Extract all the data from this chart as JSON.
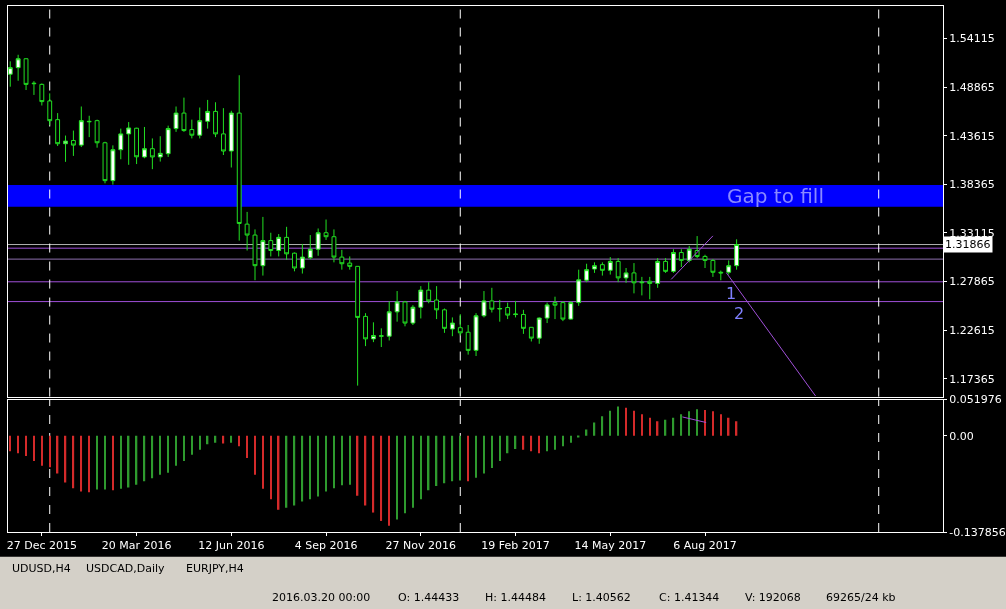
{
  "chart_data": [
    {
      "type": "candlestick",
      "color": "#22e022",
      "tick_labels": "y",
      "grid": false,
      "x": [
        "2015-11-29",
        "2015-12-06",
        "2015-12-13",
        "2015-12-20",
        "2015-12-27",
        "2016-01-03",
        "2016-01-10",
        "2016-01-17",
        "2016-01-24",
        "2016-01-31",
        "2016-02-07",
        "2016-02-14",
        "2016-02-21",
        "2016-02-28",
        "2016-03-06",
        "2016-03-13",
        "2016-03-20",
        "2016-03-27",
        "2016-04-03",
        "2016-04-10",
        "2016-04-17",
        "2016-04-24",
        "2016-05-01",
        "2016-05-08",
        "2016-05-15",
        "2016-05-22",
        "2016-05-29",
        "2016-06-05",
        "2016-06-12",
        "2016-06-19",
        "2016-06-26",
        "2016-07-03",
        "2016-07-10",
        "2016-07-17",
        "2016-07-24",
        "2016-07-31",
        "2016-08-07",
        "2016-08-14",
        "2016-08-21",
        "2016-08-28",
        "2016-09-04",
        "2016-09-11",
        "2016-09-18",
        "2016-09-25",
        "2016-10-02",
        "2016-10-09",
        "2016-10-16",
        "2016-10-23",
        "2016-10-30",
        "2016-11-06",
        "2016-11-13",
        "2016-11-20",
        "2016-11-27",
        "2016-12-04",
        "2016-12-11",
        "2016-12-18",
        "2016-12-25",
        "2017-01-01",
        "2017-01-08",
        "2017-01-15",
        "2017-01-22",
        "2017-01-29",
        "2017-02-05",
        "2017-02-12",
        "2017-02-19",
        "2017-02-26",
        "2017-03-05",
        "2017-03-12",
        "2017-03-19",
        "2017-03-26",
        "2017-04-02",
        "2017-04-09",
        "2017-04-16",
        "2017-04-23",
        "2017-04-30",
        "2017-05-07",
        "2017-05-14",
        "2017-05-21",
        "2017-05-28",
        "2017-06-04",
        "2017-06-11",
        "2017-06-18",
        "2017-06-25",
        "2017-07-02",
        "2017-07-09",
        "2017-07-16",
        "2017-07-23",
        "2017-07-30",
        "2017-08-06",
        "2017-08-13",
        "2017-08-20",
        "2017-08-27",
        "2017-09-03"
      ],
      "ohlc": [
        [
          1.5027,
          1.5166,
          1.4892,
          1.5098
        ],
        [
          1.5098,
          1.5237,
          1.4956,
          1.5194
        ],
        [
          1.5194,
          1.5198,
          1.4856,
          1.4917
        ],
        [
          1.493,
          1.4952,
          1.4803,
          1.4925
        ],
        [
          1.4917,
          1.4927,
          1.4689,
          1.4731
        ],
        [
          1.4738,
          1.482,
          1.4475,
          1.4525
        ],
        [
          1.4536,
          1.4607,
          1.4251,
          1.4276
        ],
        [
          1.4276,
          1.4364,
          1.408,
          1.4304
        ],
        [
          1.4311,
          1.4418,
          1.4144,
          1.4261
        ],
        [
          1.4261,
          1.4678,
          1.424,
          1.4525
        ],
        [
          1.4518,
          1.4578,
          1.4347,
          1.4514
        ],
        [
          1.4525,
          1.4536,
          1.4233,
          1.4286
        ],
        [
          1.4286,
          1.4297,
          1.3848,
          1.3877
        ],
        [
          1.3877,
          1.4258,
          1.3834,
          1.4211
        ],
        [
          1.4211,
          1.4439,
          1.4108,
          1.4382
        ],
        [
          1.4382,
          1.451,
          1.4048,
          1.4446
        ],
        [
          1.44433,
          1.44484,
          1.40562,
          1.41344
        ],
        [
          1.4133,
          1.4457,
          1.4119,
          1.4222
        ],
        [
          1.4222,
          1.4333,
          1.4001,
          1.4133
        ],
        [
          1.4133,
          1.4357,
          1.4083,
          1.4172
        ],
        [
          1.4168,
          1.4471,
          1.4133,
          1.4439
        ],
        [
          1.4439,
          1.4678,
          1.4404,
          1.4607
        ],
        [
          1.4607,
          1.4774,
          1.4404,
          1.4418
        ],
        [
          1.4429,
          1.4536,
          1.4333,
          1.4368
        ],
        [
          1.4368,
          1.4667,
          1.4333,
          1.4525
        ],
        [
          1.4518,
          1.4749,
          1.4439,
          1.4625
        ],
        [
          1.4625,
          1.4724,
          1.4347,
          1.4382
        ],
        [
          1.4382,
          1.466,
          1.4154,
          1.4197
        ],
        [
          1.4197,
          1.4632,
          1.4019,
          1.4607
        ],
        [
          1.4607,
          1.5016,
          1.3229,
          1.3414
        ],
        [
          1.3407,
          1.3539,
          1.3122,
          1.3289
        ],
        [
          1.3289,
          1.335,
          1.2801,
          1.2958
        ],
        [
          1.2958,
          1.3485,
          1.2851,
          1.3229
        ],
        [
          1.3229,
          1.3314,
          1.3058,
          1.3122
        ],
        [
          1.3122,
          1.33,
          1.3058,
          1.3264
        ],
        [
          1.3264,
          1.3378,
          1.3022,
          1.3086
        ],
        [
          1.3093,
          1.3101,
          1.2897,
          1.2933
        ],
        [
          1.2933,
          1.3193,
          1.2873,
          1.3051
        ],
        [
          1.3044,
          1.3289,
          1.3029,
          1.3136
        ],
        [
          1.3136,
          1.336,
          1.3065,
          1.3314
        ],
        [
          1.3314,
          1.3457,
          1.3236,
          1.3271
        ],
        [
          1.3271,
          1.335,
          1.2994,
          1.3051
        ],
        [
          1.3051,
          1.3129,
          1.2915,
          1.2979
        ],
        [
          1.2986,
          1.3058,
          1.2915,
          1.2951
        ],
        [
          1.2951,
          1.2951,
          1.1662,
          1.2399
        ],
        [
          1.241,
          1.2445,
          1.2089,
          1.2167
        ],
        [
          1.2167,
          1.2346,
          1.2132,
          1.2203
        ],
        [
          1.2196,
          1.2281,
          1.2079,
          1.22
        ],
        [
          1.2196,
          1.2573,
          1.215,
          1.246
        ],
        [
          1.2459,
          1.2684,
          1.2353,
          1.2566
        ],
        [
          1.2566,
          1.2577,
          1.2303,
          1.2338
        ],
        [
          1.2338,
          1.2531,
          1.2317,
          1.2509
        ],
        [
          1.2509,
          1.2737,
          1.2388,
          1.2694
        ],
        [
          1.2694,
          1.278,
          1.2552,
          1.2577
        ],
        [
          1.2587,
          1.2737,
          1.2381,
          1.2481
        ],
        [
          1.2481,
          1.2495,
          1.2232,
          1.2281
        ],
        [
          1.2274,
          1.2399,
          1.2196,
          1.2338
        ],
        [
          1.2288,
          1.2434,
          1.2203,
          1.2232
        ],
        [
          1.2239,
          1.2317,
          1.1997,
          1.2043
        ],
        [
          1.2043,
          1.2445,
          1.1982,
          1.2417
        ],
        [
          1.2417,
          1.2684,
          1.2399,
          1.2577
        ],
        [
          1.2577,
          1.2719,
          1.2452,
          1.2488
        ],
        [
          1.249,
          1.2588,
          1.2353,
          1.2495
        ],
        [
          1.2506,
          1.2559,
          1.2381,
          1.2424
        ],
        [
          1.243,
          1.2577,
          1.2399,
          1.2435
        ],
        [
          1.2431,
          1.2481,
          1.2221,
          1.2281
        ],
        [
          1.2292,
          1.2292,
          1.2139,
          1.2175
        ],
        [
          1.2175,
          1.2399,
          1.2114,
          1.2392
        ],
        [
          1.2392,
          1.2559,
          1.2338,
          1.2534
        ],
        [
          1.2559,
          1.2623,
          1.2381,
          1.2531
        ],
        [
          1.2559,
          1.2573,
          1.2359,
          1.2381
        ],
        [
          1.2381,
          1.2573,
          1.2374,
          1.2559
        ],
        [
          1.2559,
          1.2915,
          1.2524,
          1.2805
        ],
        [
          1.2801,
          1.2979,
          1.278,
          1.2915
        ],
        [
          1.2922,
          1.2994,
          1.288,
          1.2958
        ],
        [
          1.2969,
          1.2994,
          1.2851,
          1.2908
        ],
        [
          1.2908,
          1.3051,
          1.2862,
          1.3004
        ],
        [
          1.3004,
          1.304,
          1.278,
          1.2826
        ],
        [
          1.2826,
          1.2933,
          1.2773,
          1.288
        ],
        [
          1.288,
          1.2986,
          1.2659,
          1.2773
        ],
        [
          1.2773,
          1.2837,
          1.2637,
          1.278
        ],
        [
          1.279,
          1.2837,
          1.2595,
          1.2766
        ],
        [
          1.2766,
          1.304,
          1.2719,
          1.3004
        ],
        [
          1.3004,
          1.304,
          1.288,
          1.2897
        ],
        [
          1.2897,
          1.3136,
          1.288,
          1.31
        ],
        [
          1.31,
          1.3136,
          1.2944,
          1.3015
        ],
        [
          1.3015,
          1.3172,
          1.2994,
          1.3136
        ],
        [
          1.3122,
          1.3278,
          1.304,
          1.3058
        ],
        [
          1.3058,
          1.3076,
          1.2933,
          1.3015
        ],
        [
          1.3015,
          1.3029,
          1.2837,
          1.2887
        ],
        [
          1.2887,
          1.2905,
          1.28,
          1.288
        ],
        [
          1.2887,
          1.3015,
          1.2862,
          1.2958
        ],
        [
          1.2958,
          1.3243,
          1.2915,
          1.31866
        ]
      ],
      "series": [
        {
          "type": "line",
          "color": "#a050d8",
          "x": [
            "2017-07-07",
            "2017-08-13"
          ],
          "values": [
            1.281,
            1.328
          ]
        },
        {
          "type": "line",
          "color": "#a050d8",
          "x": [
            "2017-08-25",
            "2017-11-12"
          ],
          "values": [
            1.288,
            1.155
          ]
        }
      ],
      "xlim": [
        "2015-11-27",
        "2018-03-05"
      ],
      "ylim": [
        1.1544,
        1.5764
      ],
      "yticks": [
        1.54115,
        1.48865,
        1.43615,
        1.38365,
        1.33115,
        1.27865,
        1.22615,
        1.17365
      ],
      "bands": [
        {
          "axis": "y",
          "from": 1.3595,
          "to": 1.383,
          "label": "Gap to fill",
          "color": "#0000ff"
        }
      ],
      "ref_lines": [
        {
          "axis": "y",
          "value": 1.31866,
          "label": "1.31866",
          "color": "#b0b0b0"
        },
        {
          "axis": "y",
          "value": 1.3147,
          "color": "#a050d8"
        },
        {
          "axis": "y",
          "value": 1.3029,
          "color": "#8e70b0"
        },
        {
          "axis": "y",
          "value": 1.2784,
          "color": "#a050d8"
        },
        {
          "axis": "y",
          "value": 1.257,
          "color": "#a050d8"
        },
        {
          "axis": "x",
          "value": "2016-01-03",
          "color": "#ffffff",
          "line_style": "dashed"
        },
        {
          "axis": "x",
          "value": "2017-01-01",
          "color": "#ffffff",
          "line_style": "dashed"
        },
        {
          "axis": "x",
          "value": "2018-01-07",
          "color": "#ffffff",
          "line_style": "dashed"
        }
      ],
      "annotations": [
        {
          "text": "1",
          "x": "2017-08-29",
          "y": 1.2784
        },
        {
          "text": "2",
          "x": "2017-09-05",
          "y": 1.257
        },
        "UDUSD,H4",
        "USDCAD,Daily",
        "EURJPY,H4"
      ]
    },
    {
      "type": "bar",
      "grid": false,
      "x": [
        "2015-11-29",
        "2015-12-06",
        "2015-12-13",
        "2015-12-20",
        "2015-12-27",
        "2016-01-03",
        "2016-01-10",
        "2016-01-17",
        "2016-01-24",
        "2016-01-31",
        "2016-02-07",
        "2016-02-14",
        "2016-02-21",
        "2016-02-28",
        "2016-03-06",
        "2016-03-13",
        "2016-03-20",
        "2016-03-27",
        "2016-04-03",
        "2016-04-10",
        "2016-04-17",
        "2016-04-24",
        "2016-05-01",
        "2016-05-08",
        "2016-05-15",
        "2016-05-22",
        "2016-05-29",
        "2016-06-05",
        "2016-06-12",
        "2016-06-19",
        "2016-06-26",
        "2016-07-03",
        "2016-07-10",
        "2016-07-17",
        "2016-07-24",
        "2016-07-31",
        "2016-08-07",
        "2016-08-14",
        "2016-08-21",
        "2016-08-28",
        "2016-09-04",
        "2016-09-11",
        "2016-09-18",
        "2016-09-25",
        "2016-10-02",
        "2016-10-09",
        "2016-10-16",
        "2016-10-23",
        "2016-10-30",
        "2016-11-06",
        "2016-11-13",
        "2016-11-20",
        "2016-11-27",
        "2016-12-04",
        "2016-12-11",
        "2016-12-18",
        "2016-12-25",
        "2017-01-01",
        "2017-01-08",
        "2017-01-15",
        "2017-01-22",
        "2017-01-29",
        "2017-02-05",
        "2017-02-12",
        "2017-02-19",
        "2017-02-26",
        "2017-03-05",
        "2017-03-12",
        "2017-03-19",
        "2017-03-26",
        "2017-04-02",
        "2017-04-09",
        "2017-04-16",
        "2017-04-23",
        "2017-04-30",
        "2017-05-07",
        "2017-05-14",
        "2017-05-21",
        "2017-05-28",
        "2017-06-04",
        "2017-06-11",
        "2017-06-18",
        "2017-06-25",
        "2017-07-02",
        "2017-07-09",
        "2017-07-16",
        "2017-07-23",
        "2017-07-30",
        "2017-08-06",
        "2017-08-13",
        "2017-08-20",
        "2017-08-27",
        "2017-09-03"
      ],
      "values": [
        -0.022,
        -0.025,
        -0.029,
        -0.036,
        -0.043,
        -0.045,
        -0.054,
        -0.067,
        -0.075,
        -0.08,
        -0.081,
        -0.077,
        -0.077,
        -0.078,
        -0.076,
        -0.074,
        -0.07,
        -0.065,
        -0.061,
        -0.056,
        -0.053,
        -0.043,
        -0.036,
        -0.027,
        -0.02,
        -0.012,
        -0.01,
        -0.011,
        -0.01,
        -0.015,
        -0.032,
        -0.056,
        -0.076,
        -0.091,
        -0.106,
        -0.103,
        -0.1,
        -0.094,
        -0.091,
        -0.087,
        -0.08,
        -0.075,
        -0.071,
        -0.07,
        -0.086,
        -0.1,
        -0.11,
        -0.122,
        -0.129,
        -0.12,
        -0.111,
        -0.103,
        -0.091,
        -0.078,
        -0.072,
        -0.068,
        -0.065,
        -0.064,
        -0.065,
        -0.06,
        -0.054,
        -0.046,
        -0.036,
        -0.025,
        -0.019,
        -0.02,
        -0.022,
        -0.025,
        -0.022,
        -0.02,
        -0.015,
        -0.01,
        -0.002,
        0.009,
        0.019,
        0.028,
        0.036,
        0.042,
        0.04,
        0.036,
        0.031,
        0.026,
        0.021,
        0.023,
        0.026,
        0.031,
        0.035,
        0.038,
        0.037,
        0.035,
        0.031,
        0.026,
        0.021
      ],
      "colors": [
        "#d42a2a",
        "#d42a2a",
        "#d42a2a",
        "#d42a2a",
        "#d42a2a",
        "#d42a2a",
        "#d42a2a",
        "#d42a2a",
        "#d42a2a",
        "#d42a2a",
        "#d42a2a",
        "#2e9a2e",
        "#2e9a2e",
        "#d42a2a",
        "#2e9a2e",
        "#2e9a2e",
        "#2e9a2e",
        "#2e9a2e",
        "#2e9a2e",
        "#2e9a2e",
        "#2e9a2e",
        "#2e9a2e",
        "#2e9a2e",
        "#2e9a2e",
        "#2e9a2e",
        "#2e9a2e",
        "#2e9a2e",
        "#d42a2a",
        "#2e9a2e",
        "#d42a2a",
        "#d42a2a",
        "#d42a2a",
        "#d42a2a",
        "#d42a2a",
        "#d42a2a",
        "#2e9a2e",
        "#2e9a2e",
        "#2e9a2e",
        "#2e9a2e",
        "#2e9a2e",
        "#2e9a2e",
        "#2e9a2e",
        "#2e9a2e",
        "#2e9a2e",
        "#d42a2a",
        "#d42a2a",
        "#d42a2a",
        "#d42a2a",
        "#d42a2a",
        "#2e9a2e",
        "#2e9a2e",
        "#2e9a2e",
        "#2e9a2e",
        "#2e9a2e",
        "#2e9a2e",
        "#2e9a2e",
        "#2e9a2e",
        "#2e9a2e",
        "#d42a2a",
        "#2e9a2e",
        "#2e9a2e",
        "#2e9a2e",
        "#2e9a2e",
        "#2e9a2e",
        "#2e9a2e",
        "#d42a2a",
        "#d42a2a",
        "#d42a2a",
        "#2e9a2e",
        "#2e9a2e",
        "#2e9a2e",
        "#2e9a2e",
        "#2e9a2e",
        "#2e9a2e",
        "#2e9a2e",
        "#2e9a2e",
        "#2e9a2e",
        "#2e9a2e",
        "#d42a2a",
        "#d42a2a",
        "#d42a2a",
        "#d42a2a",
        "#d42a2a",
        "#2e9a2e",
        "#2e9a2e",
        "#2e9a2e",
        "#2e9a2e",
        "#2e9a2e",
        "#d42a2a",
        "#d42a2a",
        "#d42a2a",
        "#d42a2a",
        "#d42a2a"
      ],
      "series": [
        {
          "type": "line",
          "color": "#a050d8",
          "x": [
            "2017-07-17",
            "2017-08-07"
          ],
          "values": [
            0.027,
            0.019
          ]
        }
      ],
      "xlim": [
        "2015-11-27",
        "2018-03-05"
      ],
      "xticks": [
        {
          "value": "2015-12-27",
          "label": "27 Dec 2015"
        },
        {
          "value": "2016-03-20",
          "label": "20 Mar 2016"
        },
        {
          "value": "2016-06-12",
          "label": "12 Jun 2016"
        },
        {
          "value": "2016-09-04",
          "label": "4 Sep 2016"
        },
        {
          "value": "2016-11-27",
          "label": "27 Nov 2016"
        },
        {
          "value": "2017-02-19",
          "label": "19 Feb 2017"
        },
        {
          "value": "2017-05-14",
          "label": "14 May 2017"
        },
        {
          "value": "2017-08-06",
          "label": "6 Aug 2017"
        }
      ],
      "ylim": [
        -0.137856,
        0.051976
      ],
      "yticks": [
        0.051976,
        {
          "value": 0,
          "label": "0.00"
        },
        -0.137856
      ],
      "ref_lines": [
        {
          "axis": "x",
          "value": "2016-01-03",
          "color": "#ffffff",
          "line_style": "dashed"
        },
        {
          "axis": "x",
          "value": "2017-01-01",
          "color": "#ffffff",
          "line_style": "dashed"
        },
        {
          "axis": "x",
          "value": "2018-01-07",
          "color": "#ffffff",
          "line_style": "dashed"
        }
      ],
      "annotations": [
        "2016.03.20 00:00",
        "O: 1.44433",
        "H: 1.44484",
        "L: 1.40562",
        "C: 1.41344",
        "V: 192068",
        "69265/24 kb"
      ]
    }
  ]
}
